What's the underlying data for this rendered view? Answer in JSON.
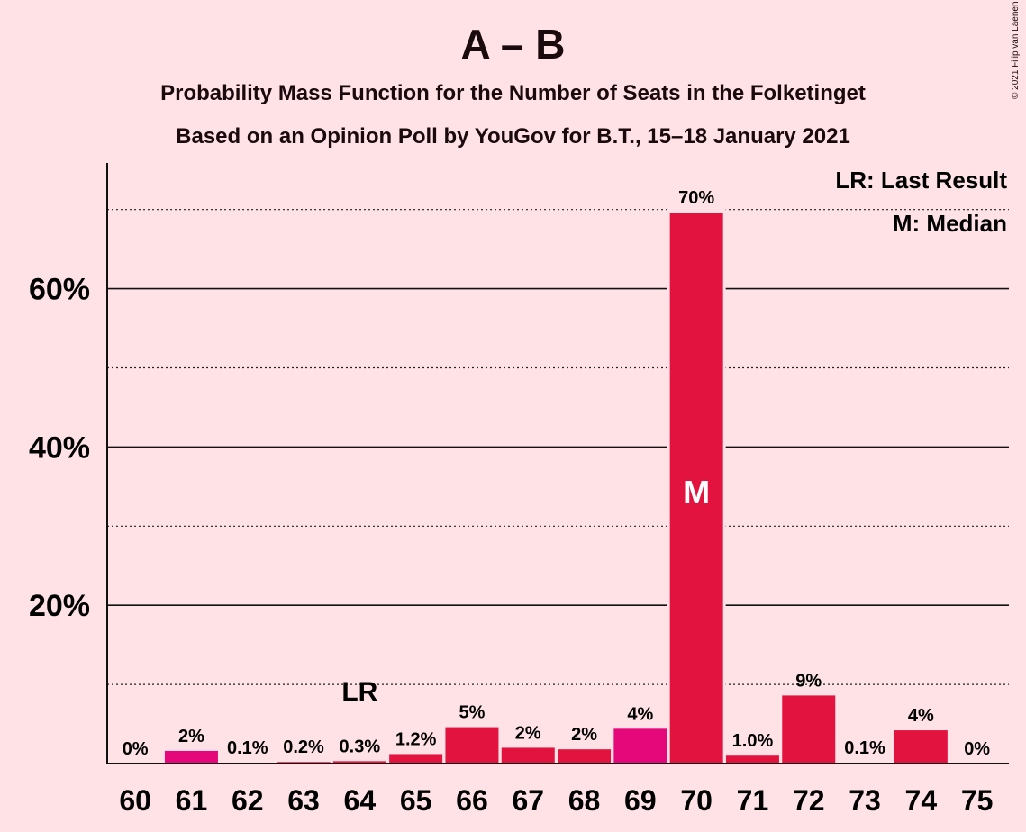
{
  "title": "A – B",
  "subtitle": "Probability Mass Function for the Number of Seats in the Folketinget",
  "subtitle2": "Based on an Opinion Poll by YouGov for B.T., 15–18 January 2021",
  "copyright": "© 2021 Filip van Laenen",
  "legend": {
    "last_result": "LR: Last Result",
    "median": "M: Median"
  },
  "markers": {
    "last_result_label": "LR",
    "last_result_seat": 64,
    "median_label": "M",
    "median_seat": 70
  },
  "colors": {
    "background": "#FFE2E6",
    "bar_primary": "#E3133F",
    "bar_alt": "#E4087A"
  },
  "chart_data": {
    "type": "bar",
    "xlabel": "",
    "ylabel": "",
    "ylim": [
      0,
      76
    ],
    "yticks": [
      20,
      40,
      60
    ],
    "ytick_labels": [
      "20%",
      "40%",
      "60%"
    ],
    "minor_gridlines": [
      10,
      30,
      50,
      70
    ],
    "categories": [
      "60",
      "61",
      "62",
      "63",
      "64",
      "65",
      "66",
      "67",
      "68",
      "69",
      "70",
      "71",
      "72",
      "73",
      "74",
      "75"
    ],
    "values": [
      0,
      1.6,
      0.1,
      0.2,
      0.3,
      1.2,
      4.6,
      2.0,
      1.8,
      4.4,
      69.6,
      1.0,
      8.6,
      0.1,
      4.2,
      0
    ],
    "labels": [
      "0%",
      "2%",
      "0.1%",
      "0.2%",
      "0.3%",
      "1.2%",
      "5%",
      "2%",
      "2%",
      "4%",
      "70%",
      "1.0%",
      "9%",
      "0.1%",
      "4%",
      "0%"
    ],
    "bar_color_keys": [
      "primary",
      "alt",
      "primary",
      "primary",
      "primary",
      "primary",
      "primary",
      "primary",
      "primary",
      "alt",
      "primary",
      "primary",
      "primary",
      "primary",
      "primary",
      "primary"
    ]
  }
}
